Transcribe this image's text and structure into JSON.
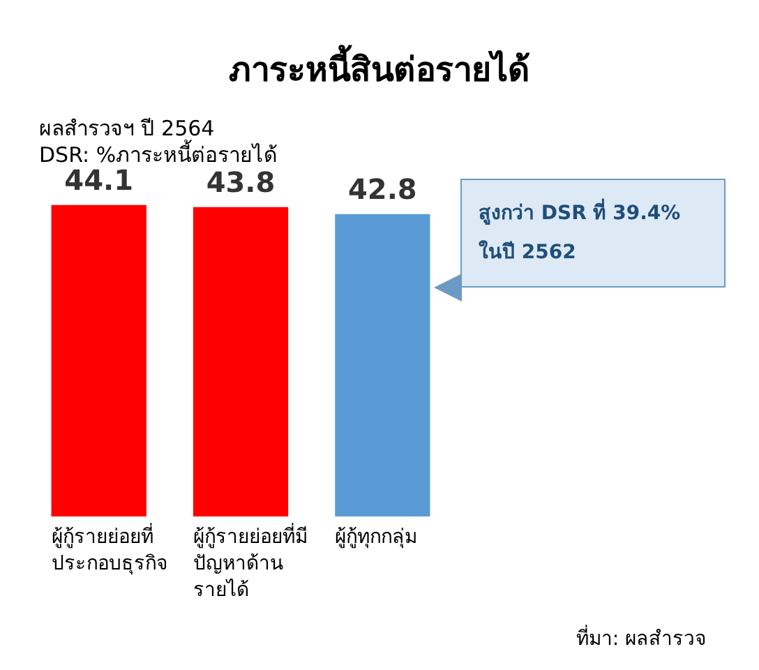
{
  "chart_data": {
    "type": "bar",
    "title": "ภาระหนี้สินต่อรายได้",
    "subtitle": "ผลสำรวจฯ ปี 2564",
    "ylabel": "DSR: %ภาระหนี้ต่อรายได้",
    "categories": [
      "ผู้กู้รายย่อยที่ประกอบธุรกิจ",
      "ผู้กู้รายย่อยที่มีปัญหาด้านรายได้",
      "ผู้กู้ทุกกลุ่ม"
    ],
    "values": [
      44.1,
      43.8,
      42.8
    ],
    "colors": [
      "#ff0000",
      "#ff0000",
      "#5b9bd5"
    ],
    "tick_labels": "x",
    "data_labels": true,
    "annotations": [
      "สูงกว่า DSR ที่ 39.4% ในปี 2562",
      "ที่มา: ผลสำรวจ"
    ]
  }
}
